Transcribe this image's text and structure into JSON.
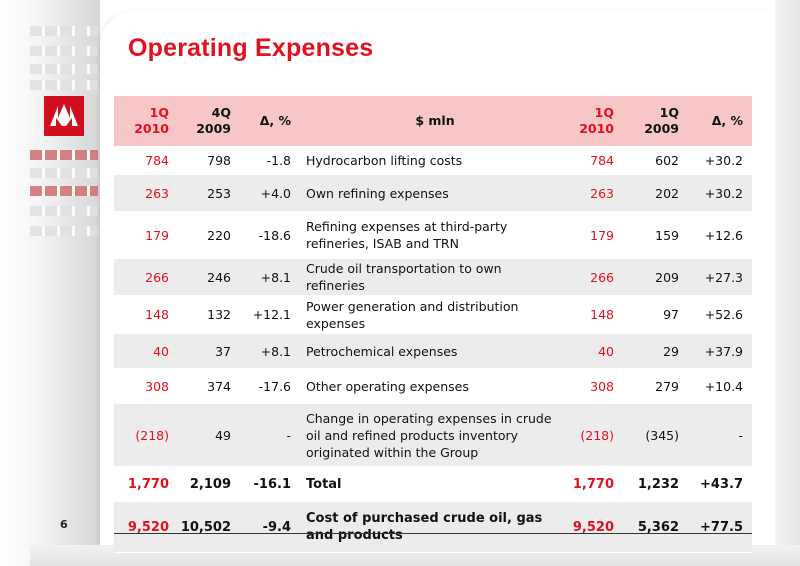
{
  "title": "Operating Expenses",
  "page_number": "6",
  "colors": {
    "accent": "#e3101f",
    "header_bg": "#f7c6c6",
    "stripe_bg": "#ececec"
  },
  "logo": {
    "icon": "lukoil-logo-icon"
  },
  "table": {
    "headers": {
      "c1": [
        "1Q",
        "2010"
      ],
      "c2": [
        "4Q",
        "2009"
      ],
      "c3": "Δ, %",
      "c4": "$ mln",
      "c5": [
        "1Q",
        "2010"
      ],
      "c6": [
        "1Q",
        "2009"
      ],
      "c7": "Δ, %"
    },
    "rows": [
      {
        "c1": "784",
        "c2": "798",
        "c3": "-1.8",
        "c4": "Hydrocarbon lifting costs",
        "c5": "784",
        "c6": "602",
        "c7": "+30.2"
      },
      {
        "c1": "263",
        "c2": "253",
        "c3": "+4.0",
        "c4": "Own refining expenses",
        "c5": "263",
        "c6": "202",
        "c7": "+30.2"
      },
      {
        "c1": "179",
        "c2": "220",
        "c3": "-18.6",
        "c4": "Refining expenses at third-party refineries, ISAB and TRN",
        "c5": "179",
        "c6": "159",
        "c7": "+12.6"
      },
      {
        "c1": "266",
        "c2": "246",
        "c3": "+8.1",
        "c4": "Crude oil transportation to own refineries",
        "c5": "266",
        "c6": "209",
        "c7": "+27.3"
      },
      {
        "c1": "148",
        "c2": "132",
        "c3": "+12.1",
        "c4": "Power generation and distribution expenses",
        "c5": "148",
        "c6": "97",
        "c7": "+52.6"
      },
      {
        "c1": "40",
        "c2": "37",
        "c3": "+8.1",
        "c4": "Petrochemical expenses",
        "c5": "40",
        "c6": "29",
        "c7": "+37.9"
      },
      {
        "c1": "308",
        "c2": "374",
        "c3": "-17.6",
        "c4": "Other operating expenses",
        "c5": "308",
        "c6": "279",
        "c7": "+10.4"
      },
      {
        "c1": "(218)",
        "c2": "49",
        "c3": "-",
        "c4": "Change in operating expenses in crude oil and refined products inventory originated within the Group",
        "c5": "(218)",
        "c6": "(345)",
        "c7": "-"
      },
      {
        "c1": "1,770",
        "c2": "2,109",
        "c3": "-16.1",
        "c4": "Total",
        "c5": "1,770",
        "c6": "1,232",
        "c7": "+43.7"
      },
      {
        "c1": "9,520",
        "c2": "10,502",
        "c3": "-9.4",
        "c4": "Cost of purchased crude oil, gas and products",
        "c5": "9,520",
        "c6": "5,362",
        "c7": "+77.5"
      }
    ]
  }
}
